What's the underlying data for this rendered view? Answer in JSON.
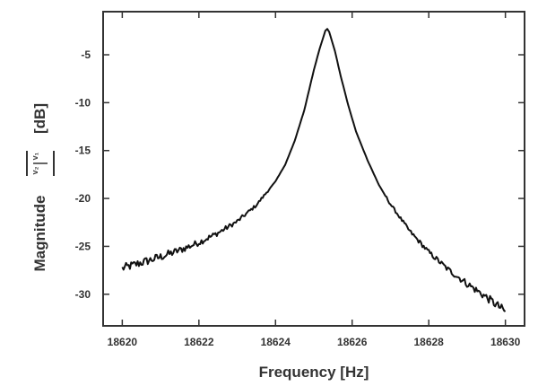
{
  "chart_data": {
    "type": "line",
    "title": "",
    "xlabel": "Frequency [Hz]",
    "ylabel": {
      "prefix": "Magnitude",
      "fraction_numerator": "v₂",
      "fraction_denominator": "v₁",
      "suffix": "[dB]"
    },
    "xlim": [
      18619.5,
      18630.5
    ],
    "ylim": [
      -33.3,
      -0.5
    ],
    "x_ticks": [
      18620,
      18622,
      18624,
      18626,
      18628,
      18630
    ],
    "y_ticks": [
      -5,
      -10,
      -15,
      -20,
      -25,
      -30
    ],
    "grid": false,
    "series": [
      {
        "name": "",
        "color": "#111111",
        "peak_frequency": 18625.35,
        "x": [
          18620.0,
          18620.5,
          18621.0,
          18621.5,
          18622.0,
          18622.5,
          18623.0,
          18623.5,
          18624.0,
          18624.25,
          18624.5,
          18624.75,
          18625.0,
          18625.15,
          18625.3,
          18625.35,
          18625.4,
          18625.55,
          18625.7,
          18625.9,
          18626.1,
          18626.4,
          18626.7,
          18627.0,
          18627.5,
          18628.0,
          18628.5,
          18629.0,
          18629.5,
          18630.0
        ],
        "y": [
          -27.3,
          -26.7,
          -26.1,
          -25.4,
          -24.6,
          -23.6,
          -22.4,
          -20.7,
          -18.2,
          -16.5,
          -14.0,
          -10.8,
          -6.6,
          -4.4,
          -2.5,
          -2.3,
          -2.6,
          -4.6,
          -7.2,
          -10.3,
          -13.0,
          -16.0,
          -18.6,
          -20.6,
          -23.4,
          -25.6,
          -27.4,
          -28.9,
          -30.3,
          -31.8
        ]
      }
    ]
  }
}
